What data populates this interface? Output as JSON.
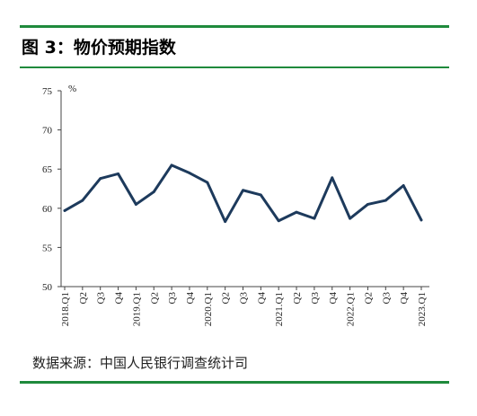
{
  "figure": {
    "title": "图 3：物价预期指数",
    "source": "数据来源：中国人民银行调查统计司"
  },
  "chart_data": {
    "type": "line",
    "unit": "%",
    "ylim": [
      50,
      75
    ],
    "yticks": [
      50,
      55,
      60,
      65,
      70,
      75
    ],
    "categories": [
      "2018.Q1",
      "Q2",
      "Q3",
      "Q4",
      "2019.Q1",
      "Q2",
      "Q3",
      "Q4",
      "2020.Q1",
      "Q2",
      "Q3",
      "Q4",
      "2021.Q1",
      "Q2",
      "Q3",
      "Q4",
      "2022.Q1",
      "Q2",
      "Q3",
      "Q4",
      "2023.Q1"
    ],
    "series": [
      {
        "values": [
          59.7,
          61.0,
          63.8,
          64.4,
          60.5,
          62.1,
          65.5,
          64.5,
          63.3,
          58.3,
          62.3,
          61.7,
          58.4,
          59.5,
          58.7,
          63.9,
          58.7,
          60.5,
          61.0,
          62.9,
          58.5
        ],
        "color": "#1d3a5c"
      }
    ],
    "grid": false,
    "legend": "none"
  }
}
